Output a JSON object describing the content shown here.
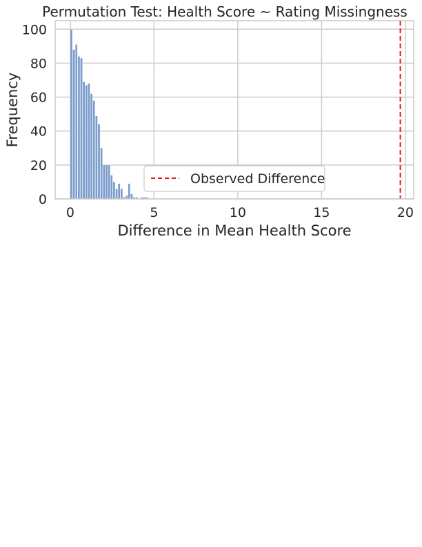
{
  "chart_data": {
    "type": "bar",
    "title": "Permutation Test: Health Score ~ Rating Missingness",
    "xlabel": "Difference in Mean Health Score",
    "ylabel": "Frequency",
    "xlim": [
      -0.9,
      20.5
    ],
    "ylim": [
      0,
      105
    ],
    "xticks": [
      0,
      5,
      10,
      15,
      20
    ],
    "yticks": [
      0,
      20,
      40,
      60,
      80,
      100
    ],
    "grid": true,
    "bin_width": 0.13,
    "bins": [
      {
        "x": 0.0,
        "count": 100
      },
      {
        "x": 0.15,
        "count": 88
      },
      {
        "x": 0.3,
        "count": 91
      },
      {
        "x": 0.45,
        "count": 84
      },
      {
        "x": 0.6,
        "count": 83
      },
      {
        "x": 0.75,
        "count": 69
      },
      {
        "x": 0.9,
        "count": 67
      },
      {
        "x": 1.05,
        "count": 68
      },
      {
        "x": 1.2,
        "count": 62
      },
      {
        "x": 1.35,
        "count": 58
      },
      {
        "x": 1.5,
        "count": 49
      },
      {
        "x": 1.65,
        "count": 44
      },
      {
        "x": 1.8,
        "count": 30
      },
      {
        "x": 1.95,
        "count": 20
      },
      {
        "x": 2.1,
        "count": 20
      },
      {
        "x": 2.25,
        "count": 20
      },
      {
        "x": 2.4,
        "count": 14
      },
      {
        "x": 2.55,
        "count": 10
      },
      {
        "x": 2.7,
        "count": 6
      },
      {
        "x": 2.85,
        "count": 9
      },
      {
        "x": 3.0,
        "count": 6
      },
      {
        "x": 3.15,
        "count": 1
      },
      {
        "x": 3.3,
        "count": 2
      },
      {
        "x": 3.45,
        "count": 9
      },
      {
        "x": 3.6,
        "count": 3
      },
      {
        "x": 3.75,
        "count": 1
      },
      {
        "x": 3.9,
        "count": 1
      },
      {
        "x": 4.2,
        "count": 1
      },
      {
        "x": 4.35,
        "count": 1
      },
      {
        "x": 4.5,
        "count": 1
      }
    ],
    "observed_difference": 19.7,
    "legend": {
      "label": "Observed Difference",
      "placement": "lower-center"
    },
    "colors": {
      "bars": "#7b9ccc",
      "observed_line": "#e31a1c",
      "grid": "#cccccc",
      "axis": "#cccccc"
    }
  }
}
